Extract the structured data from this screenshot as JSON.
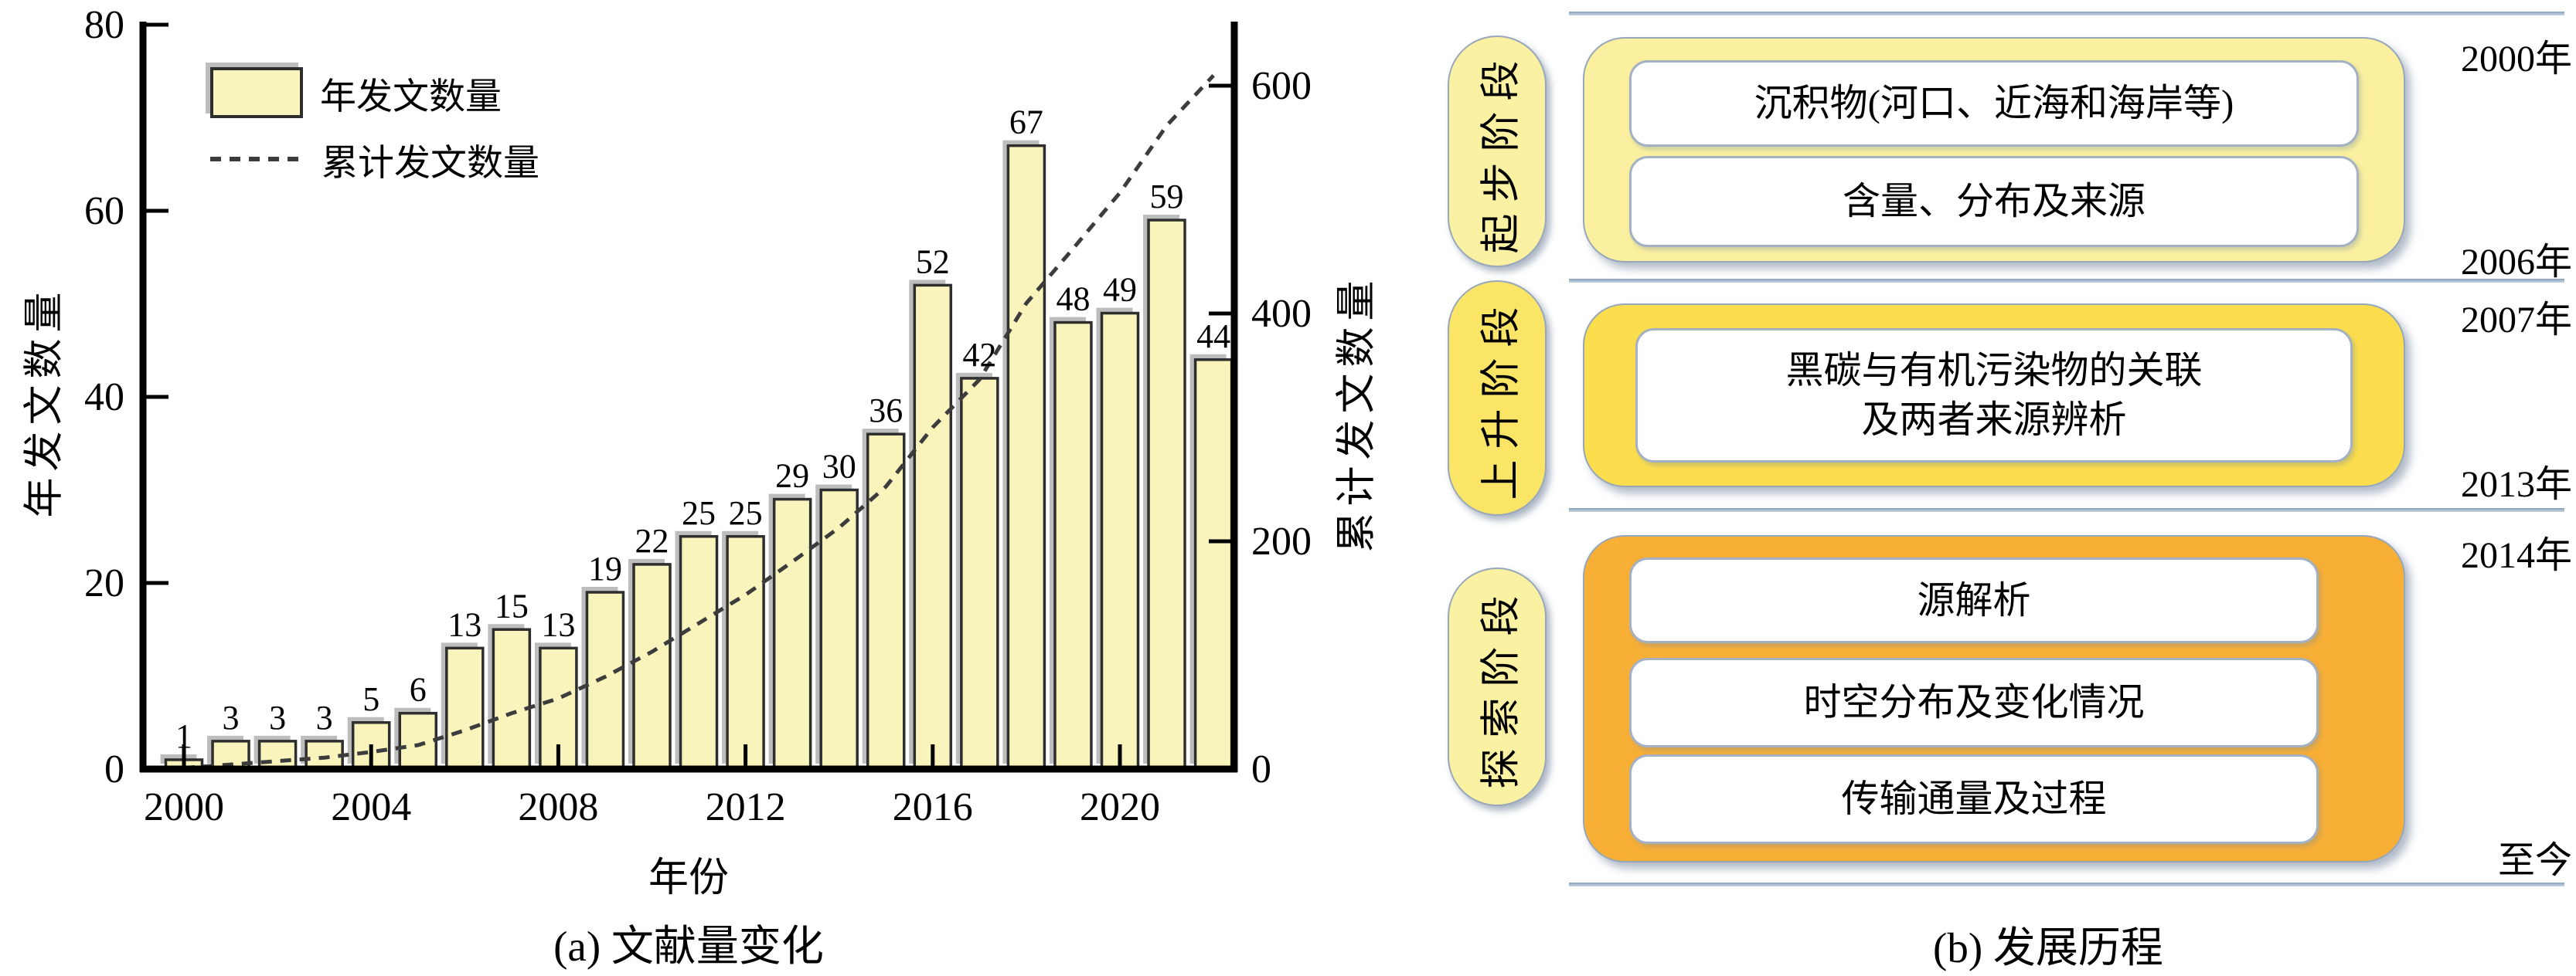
{
  "chart_data": {
    "type": "bar",
    "title": "",
    "xlabel": "年份",
    "ylabel_left": "年发文数量",
    "ylabel_right": "累计发文数量",
    "categories": [
      2000,
      2001,
      2002,
      2003,
      2004,
      2005,
      2006,
      2007,
      2008,
      2009,
      2010,
      2011,
      2012,
      2013,
      2014,
      2015,
      2016,
      2017,
      2018,
      2019,
      2020,
      2021,
      2022
    ],
    "series": [
      {
        "name": "年发文数量",
        "type": "bar",
        "values": [
          1,
          3,
          3,
          3,
          5,
          6,
          13,
          15,
          13,
          19,
          22,
          25,
          25,
          29,
          30,
          36,
          52,
          42,
          67,
          48,
          49,
          59,
          44
        ]
      },
      {
        "name": "累计发文数量",
        "type": "line-dashed",
        "values": [
          1,
          4,
          7,
          10,
          15,
          21,
          34,
          49,
          62,
          81,
          103,
          128,
          153,
          182,
          212,
          248,
          300,
          342,
          409,
          457,
          506,
          565,
          609
        ]
      }
    ],
    "ylim_left": [
      0,
      80
    ],
    "yticks_left": [
      0,
      20,
      40,
      60,
      80
    ],
    "ylim_right": [
      0,
      655
    ],
    "yticks_right": [
      0,
      200,
      400,
      600
    ],
    "xticks": [
      2000,
      2004,
      2008,
      2012,
      2016,
      2020
    ],
    "legend_position": "upper-left",
    "grid": false,
    "style": {
      "bar_fill": "#f9f4bc",
      "bar_border": "#2e2e2e",
      "bar_shadow": "#bdbdbd",
      "line_color": "#3c3c3c",
      "tick_label_size": 52,
      "value_label_size": 44
    }
  },
  "panel_a": {
    "legend": {
      "bar_label": "年发文数量",
      "line_label": "累计发文数量"
    },
    "ylabel_left": "年发文数量",
    "ylabel_right": "累计发文数量",
    "xlabel": "年份",
    "caption": "(a) 文献量变化"
  },
  "panel_b": {
    "caption": "(b) 发展历程",
    "timeline_years": {
      "y2000": "2000年",
      "y2006": "2006年",
      "y2007": "2007年",
      "y2013": "2013年",
      "y2014": "2014年",
      "now": "至今"
    },
    "stages": [
      {
        "tag": "起步阶段",
        "start": "2000年",
        "end": "2006年",
        "fill": "#fbf0a0",
        "tag_fill": "#fbf1a3",
        "boxes": [
          "沉积物(河口、近海和海岸等)",
          "含量、分布及来源"
        ]
      },
      {
        "tag": "上升阶段",
        "start": "2007年",
        "end": "2013年",
        "fill": "#fbdd4d",
        "tag_fill": "#fbe566",
        "boxes": [
          "黑碳与有机污染物的关联\n及两者来源辨析"
        ]
      },
      {
        "tag": "探索阶段",
        "start": "2014年",
        "end": "至今",
        "fill": "#f8af36",
        "tag_fill": "#fbf1a3",
        "boxes": [
          "源解析",
          "时空分布及变化情况",
          "传输通量及过程"
        ]
      }
    ],
    "divider_color": "#8fa9c0"
  }
}
